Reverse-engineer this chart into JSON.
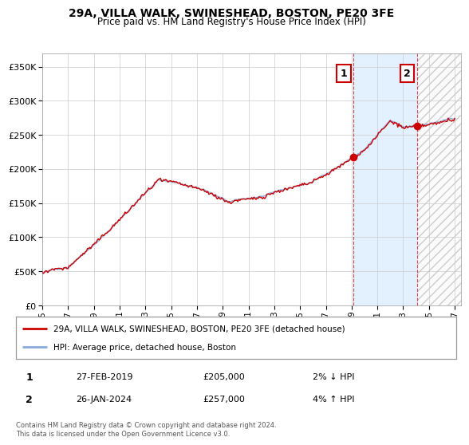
{
  "title": "29A, VILLA WALK, SWINESHEAD, BOSTON, PE20 3FE",
  "subtitle": "Price paid vs. HM Land Registry's House Price Index (HPI)",
  "legend_line1": "29A, VILLA WALK, SWINESHEAD, BOSTON, PE20 3FE (detached house)",
  "legend_line2": "HPI: Average price, detached house, Boston",
  "marker1_date": "27-FEB-2019",
  "marker1_price": 205000,
  "marker1_label": "2% ↓ HPI",
  "marker2_date": "26-JAN-2024",
  "marker2_price": 257000,
  "marker2_label": "4% ↑ HPI",
  "footnote": "Contains HM Land Registry data © Crown copyright and database right 2024.\nThis data is licensed under the Open Government Licence v3.0.",
  "price_color": "#cc0000",
  "hpi_color": "#88aadd",
  "marker_color": "#cc0000",
  "vline_color": "#cc0000",
  "shade_color": "#ddeeff",
  "hatch_color": "#cccccc",
  "ylim": [
    0,
    370000
  ],
  "yticks": [
    0,
    50000,
    100000,
    150000,
    200000,
    250000,
    300000,
    350000
  ],
  "xlim_start": 1995.0,
  "xlim_end": 2027.5,
  "xticks": [
    1995,
    1997,
    1999,
    2001,
    2003,
    2005,
    2007,
    2009,
    2011,
    2013,
    2015,
    2017,
    2019,
    2021,
    2023,
    2025,
    2027
  ],
  "sale1_year": 2019.16,
  "sale2_year": 2024.08
}
